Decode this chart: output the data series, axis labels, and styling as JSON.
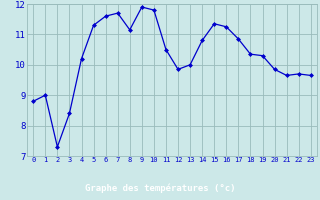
{
  "x": [
    0,
    1,
    2,
    3,
    4,
    5,
    6,
    7,
    8,
    9,
    10,
    11,
    12,
    13,
    14,
    15,
    16,
    17,
    18,
    19,
    20,
    21,
    22,
    23
  ],
  "y": [
    8.8,
    9.0,
    7.3,
    8.4,
    10.2,
    11.3,
    11.6,
    11.7,
    11.15,
    11.9,
    11.8,
    10.5,
    9.85,
    10.0,
    10.8,
    11.35,
    11.25,
    10.85,
    10.35,
    10.3,
    9.85,
    9.65,
    9.7,
    9.65
  ],
  "xlabel": "Graphe des températures (°c)",
  "line_color": "#0000cc",
  "marker_color": "#0000cc",
  "bg_color": "#cce8e8",
  "grid_color": "#99bbbb",
  "xlim": [
    -0.5,
    23.5
  ],
  "ylim": [
    7,
    12
  ],
  "yticks": [
    7,
    8,
    9,
    10,
    11,
    12
  ],
  "xtick_labels": [
    "0",
    "1",
    "2",
    "3",
    "4",
    "5",
    "6",
    "7",
    "8",
    "9",
    "10",
    "11",
    "12",
    "13",
    "14",
    "15",
    "16",
    "17",
    "18",
    "19",
    "20",
    "21",
    "22",
    "23"
  ],
  "bottom_bar_color": "#0000aa",
  "bottom_text_color": "#ffffff",
  "tick_color": "#0000cc"
}
